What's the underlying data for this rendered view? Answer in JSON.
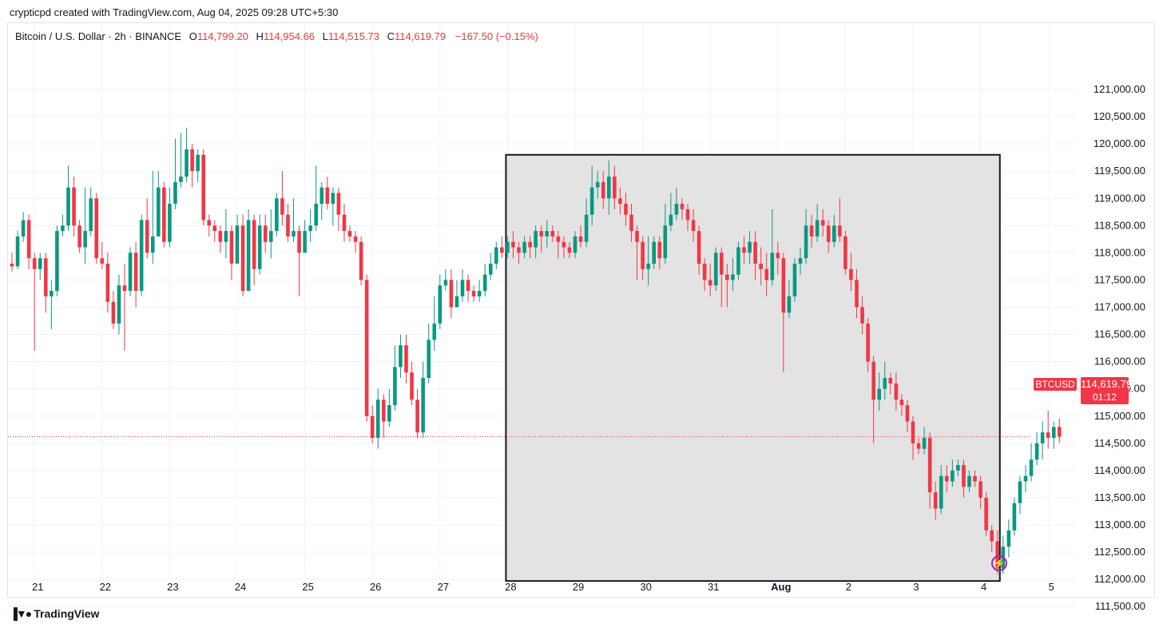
{
  "header": {
    "credit": "crypticpd created with TradingView.com, Aug 04, 2025 09:28 UTC+5:30"
  },
  "legend": {
    "symbol": "Bitcoin / U.S. Dollar · 2h · BINANCE",
    "o_label": "O",
    "o_value": "114,799.20",
    "h_label": "H",
    "h_value": "114,954.66",
    "l_label": "L",
    "l_value": "114,515.73",
    "c_label": "C",
    "c_value": "114,619.79",
    "change": "−167.50 (−0.15%)"
  },
  "price_tag": {
    "symbol": "BTCUSD",
    "price": "114,619.79",
    "countdown": "01:12"
  },
  "brand": {
    "name": "TradingView",
    "logo_icon": "tradingview-logo-icon"
  },
  "colors": {
    "up": "#089981",
    "down": "#f23645",
    "box_fill": "#e3e3e3",
    "grid": "#f0f3fa"
  },
  "chart_data": {
    "type": "candlestick",
    "interval": "2h",
    "ylim": [
      111200,
      121300
    ],
    "y_ticks": [
      111500,
      112000,
      112500,
      113000,
      113500,
      114000,
      114500,
      115000,
      115500,
      116000,
      116500,
      117000,
      117500,
      118000,
      118500,
      119000,
      119500,
      120000,
      120500,
      121000
    ],
    "y_tick_labels": [
      "111,500.00",
      "112,000.00",
      "112,500.00",
      "113,000.00",
      "113,500.00",
      "114,000.00",
      "114,500.00",
      "115,000.00",
      "115,500.00",
      "116,000.00",
      "116,500.00",
      "117,000.00",
      "117,500.00",
      "118,000.00",
      "118,500.00",
      "119,000.00",
      "119,500.00",
      "120,000.00",
      "120,500.00",
      "121,000.00"
    ],
    "x_tick_labels": [
      "21",
      "22",
      "23",
      "24",
      "25",
      "26",
      "27",
      "28",
      "29",
      "30",
      "31",
      "Aug",
      "2",
      "3",
      "4",
      "5"
    ],
    "x_tick_index": [
      4,
      16,
      28,
      40,
      52,
      64,
      76,
      88,
      100,
      112,
      124,
      136,
      148,
      160,
      172,
      184
    ],
    "last_price": 114619.79,
    "highlight_box": {
      "from_index": 88,
      "to_index": 175,
      "low": 111970,
      "high": 119800
    },
    "candles": [
      [
        117800,
        117750,
        118000,
        117650
      ],
      [
        117750,
        118300,
        118400,
        117700
      ],
      [
        118300,
        118600,
        118750,
        118200
      ],
      [
        118600,
        117900,
        118700,
        117700
      ],
      [
        117900,
        117700,
        118000,
        116200
      ],
      [
        117700,
        117900,
        118000,
        117500
      ],
      [
        117900,
        117200,
        118000,
        116900
      ],
      [
        117200,
        117300,
        117500,
        116600
      ],
      [
        117300,
        118400,
        118500,
        117200
      ],
      [
        118400,
        118500,
        118700,
        118300
      ],
      [
        118500,
        119200,
        119600,
        118400
      ],
      [
        119200,
        118500,
        119400,
        118300
      ],
      [
        118500,
        118100,
        118600,
        118000
      ],
      [
        118100,
        118400,
        119200,
        117800
      ],
      [
        118400,
        119000,
        119200,
        118300
      ],
      [
        119000,
        117900,
        119100,
        117800
      ],
      [
        117900,
        117800,
        118200,
        117700
      ],
      [
        117800,
        117100,
        118000,
        116900
      ],
      [
        117100,
        116700,
        117300,
        116600
      ],
      [
        116700,
        117400,
        117600,
        116500
      ],
      [
        117400,
        117300,
        117800,
        116200
      ],
      [
        117300,
        118000,
        118100,
        117200
      ],
      [
        118000,
        117300,
        118200,
        117000
      ],
      [
        117300,
        118600,
        118700,
        117200
      ],
      [
        118600,
        118000,
        119000,
        117900
      ],
      [
        118000,
        118300,
        119500,
        117800
      ],
      [
        118300,
        119200,
        119500,
        118300
      ],
      [
        119200,
        118200,
        119300,
        118100
      ],
      [
        118200,
        118900,
        119200,
        118100
      ],
      [
        118900,
        119300,
        120100,
        118800
      ],
      [
        119300,
        119400,
        120200,
        119200
      ],
      [
        119400,
        119900,
        120300,
        119300
      ],
      [
        119900,
        119500,
        120000,
        119200
      ],
      [
        119500,
        119800,
        119900,
        119300
      ],
      [
        119800,
        118600,
        119900,
        118500
      ],
      [
        118600,
        118500,
        118700,
        118300
      ],
      [
        118500,
        118400,
        118600,
        118200
      ],
      [
        118400,
        118200,
        118500,
        118000
      ],
      [
        118200,
        118400,
        118800,
        117900
      ],
      [
        118400,
        117800,
        118500,
        117500
      ],
      [
        117800,
        118500,
        118700,
        117800
      ],
      [
        118500,
        117300,
        118700,
        117200
      ],
      [
        117300,
        118600,
        118800,
        117300
      ],
      [
        118600,
        117700,
        118700,
        117400
      ],
      [
        117700,
        118500,
        118700,
        117600
      ],
      [
        118500,
        118200,
        118700,
        118000
      ],
      [
        118200,
        118400,
        118800,
        117900
      ],
      [
        118400,
        119000,
        119100,
        118300
      ],
      [
        119000,
        118700,
        119500,
        118500
      ],
      [
        118700,
        118300,
        118900,
        118200
      ],
      [
        118300,
        118400,
        119000,
        118200
      ],
      [
        118400,
        118000,
        118500,
        117200
      ],
      [
        118000,
        118400,
        118600,
        118200
      ],
      [
        118400,
        118500,
        118800,
        118200
      ],
      [
        118500,
        118900,
        119600,
        118400
      ],
      [
        118900,
        119200,
        119300,
        118600
      ],
      [
        119200,
        118900,
        119400,
        118800
      ],
      [
        118900,
        119100,
        119200,
        118500
      ],
      [
        119100,
        118700,
        119200,
        118400
      ],
      [
        118700,
        118400,
        118900,
        118200
      ],
      [
        118400,
        118300,
        118500,
        118200
      ],
      [
        118300,
        118200,
        118400,
        118000
      ],
      [
        118200,
        117500,
        118300,
        117400
      ],
      [
        117500,
        115000,
        117600,
        114900
      ],
      [
        115000,
        114600,
        115200,
        114500
      ],
      [
        114600,
        115300,
        115500,
        114400
      ],
      [
        115300,
        114900,
        115400,
        114600
      ],
      [
        114900,
        115200,
        115500,
        114800
      ],
      [
        115200,
        115900,
        116300,
        115100
      ],
      [
        115900,
        116300,
        116500,
        115700
      ],
      [
        116300,
        115800,
        116500,
        115600
      ],
      [
        115800,
        115300,
        116000,
        115200
      ],
      [
        115300,
        114700,
        115500,
        114600
      ],
      [
        114700,
        115700,
        116000,
        114600
      ],
      [
        115700,
        116400,
        116700,
        115600
      ],
      [
        116400,
        116700,
        117200,
        116200
      ],
      [
        116700,
        117400,
        117600,
        116600
      ],
      [
        117400,
        117500,
        117700,
        117300
      ],
      [
        117500,
        117000,
        117700,
        116800
      ],
      [
        117000,
        117200,
        117500,
        117000
      ],
      [
        117200,
        117500,
        117700,
        117100
      ],
      [
        117500,
        117300,
        117600,
        117100
      ],
      [
        117300,
        117200,
        117400,
        117100
      ],
      [
        117200,
        117300,
        117500,
        117100
      ],
      [
        117300,
        117600,
        117800,
        117200
      ],
      [
        117600,
        117800,
        118000,
        117500
      ],
      [
        117800,
        118100,
        118200,
        117700
      ],
      [
        118100,
        118000,
        118300,
        117900
      ],
      [
        118000,
        118200,
        118300,
        117900
      ],
      [
        118200,
        118100,
        118400,
        117900
      ],
      [
        118100,
        118000,
        118200,
        117800
      ],
      [
        118000,
        118200,
        118300,
        117900
      ],
      [
        118200,
        118100,
        118300,
        117900
      ],
      [
        118100,
        118400,
        118500,
        117900
      ],
      [
        118400,
        118300,
        118500,
        118000
      ],
      [
        118300,
        118400,
        118600,
        118100
      ],
      [
        118400,
        118300,
        118500,
        118200
      ],
      [
        118300,
        118200,
        118400,
        117900
      ],
      [
        118200,
        118100,
        118300,
        117900
      ],
      [
        118100,
        118000,
        118200,
        117900
      ],
      [
        118000,
        118300,
        118400,
        117900
      ],
      [
        118300,
        118200,
        118500,
        118100
      ],
      [
        118200,
        118700,
        119000,
        118100
      ],
      [
        118700,
        119200,
        119600,
        118500
      ],
      [
        119200,
        119300,
        119500,
        119000
      ],
      [
        119300,
        119000,
        119500,
        118800
      ],
      [
        119000,
        119400,
        119700,
        118700
      ],
      [
        119400,
        119000,
        119600,
        118800
      ],
      [
        119000,
        118900,
        119200,
        118700
      ],
      [
        118900,
        118700,
        119100,
        118500
      ],
      [
        118700,
        118400,
        118900,
        118200
      ],
      [
        118400,
        118200,
        118500,
        117500
      ],
      [
        118200,
        117700,
        118300,
        117500
      ],
      [
        117700,
        117800,
        118300,
        117400
      ],
      [
        117800,
        118200,
        118300,
        117700
      ],
      [
        118200,
        117900,
        118300,
        117700
      ],
      [
        117900,
        118500,
        118900,
        117800
      ],
      [
        118500,
        118700,
        119100,
        118400
      ],
      [
        118700,
        118900,
        119200,
        118600
      ],
      [
        118900,
        118800,
        119000,
        118600
      ],
      [
        118800,
        118600,
        118900,
        118400
      ],
      [
        118600,
        118400,
        118800,
        118200
      ],
      [
        118400,
        117800,
        118500,
        117600
      ],
      [
        117800,
        117500,
        117900,
        117300
      ],
      [
        117500,
        117400,
        117800,
        117200
      ],
      [
        117400,
        118000,
        118100,
        117300
      ],
      [
        118000,
        117600,
        118100,
        117000
      ],
      [
        117600,
        117500,
        117800,
        117000
      ],
      [
        117500,
        117600,
        117900,
        117300
      ],
      [
        117600,
        118100,
        118200,
        117500
      ],
      [
        118100,
        118000,
        118300,
        117800
      ],
      [
        118000,
        118200,
        118400,
        117800
      ],
      [
        118200,
        117800,
        118400,
        117500
      ],
      [
        117800,
        117700,
        118100,
        117400
      ],
      [
        117700,
        117500,
        118000,
        117200
      ],
      [
        117500,
        118000,
        118800,
        117400
      ],
      [
        118000,
        117900,
        118200,
        117600
      ],
      [
        117900,
        116900,
        118000,
        115800
      ],
      [
        116900,
        117200,
        117500,
        116800
      ],
      [
        117200,
        117800,
        117900,
        117100
      ],
      [
        117800,
        117900,
        118100,
        117600
      ],
      [
        117900,
        118500,
        118800,
        117800
      ],
      [
        118500,
        118300,
        118700,
        118100
      ],
      [
        118300,
        118600,
        118900,
        118200
      ],
      [
        118600,
        118500,
        118800,
        118300
      ],
      [
        118500,
        118200,
        118600,
        118000
      ],
      [
        118200,
        118500,
        118700,
        118100
      ],
      [
        118500,
        118300,
        119000,
        118200
      ],
      [
        118300,
        117700,
        118400,
        117600
      ],
      [
        117700,
        117500,
        118000,
        117300
      ],
      [
        117500,
        117000,
        117700,
        116800
      ],
      [
        117000,
        116700,
        117200,
        116500
      ],
      [
        116700,
        116000,
        116800,
        115800
      ],
      [
        116000,
        115300,
        116100,
        114500
      ],
      [
        115300,
        115500,
        115800,
        115100
      ],
      [
        115500,
        115700,
        116000,
        115300
      ],
      [
        115700,
        115600,
        115800,
        115400
      ],
      [
        115600,
        115300,
        115800,
        115100
      ],
      [
        115300,
        115200,
        115400,
        115000
      ],
      [
        115200,
        114900,
        115300,
        114700
      ],
      [
        114900,
        114500,
        115000,
        114200
      ],
      [
        114500,
        114400,
        114600,
        114300
      ],
      [
        114400,
        114600,
        114800,
        114300
      ],
      [
        114600,
        113600,
        114700,
        113300
      ],
      [
        113600,
        113300,
        113800,
        113100
      ],
      [
        113300,
        113900,
        114100,
        113200
      ],
      [
        113900,
        113800,
        114100,
        113600
      ],
      [
        113800,
        114000,
        114200,
        113700
      ],
      [
        114000,
        114100,
        114200,
        113900
      ],
      [
        114100,
        113700,
        114200,
        113500
      ],
      [
        113700,
        113900,
        114000,
        113600
      ],
      [
        113900,
        113800,
        114000,
        113700
      ],
      [
        113800,
        113500,
        113900,
        113300
      ],
      [
        113500,
        112900,
        113600,
        112800
      ],
      [
        112900,
        112700,
        113000,
        112500
      ],
      [
        112700,
        112200,
        112900,
        112100
      ],
      [
        112200,
        112600,
        112800,
        112100
      ],
      [
        112600,
        112900,
        113100,
        112400
      ],
      [
        112900,
        113400,
        113500,
        112800
      ],
      [
        113400,
        113800,
        113900,
        113200
      ],
      [
        113800,
        113900,
        114100,
        113600
      ],
      [
        113900,
        114200,
        114500,
        113800
      ],
      [
        114200,
        114500,
        114700,
        114100
      ],
      [
        114500,
        114700,
        114900,
        114200
      ],
      [
        114700,
        114600,
        115100,
        114400
      ],
      [
        114600,
        114800,
        114900,
        114400
      ],
      [
        114800,
        114620,
        114950,
        114510
      ]
    ]
  }
}
